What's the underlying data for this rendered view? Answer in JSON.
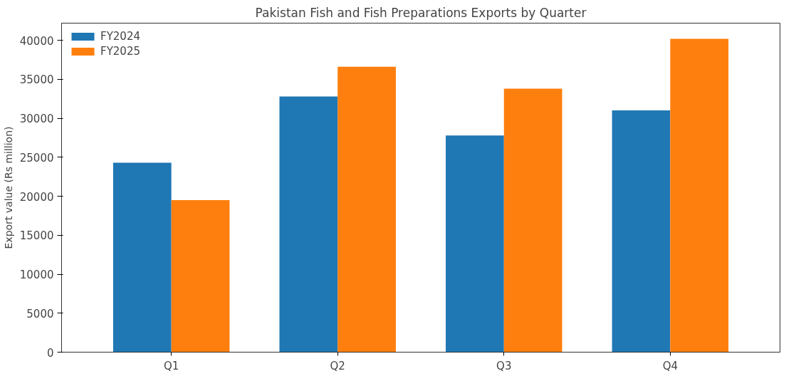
{
  "chart_data": {
    "type": "bar",
    "title": "Pakistan Fish and Fish Preparations Exports by Quarter",
    "ylabel": "Export value (Rs million)",
    "categories": [
      "Q1",
      "Q2",
      "Q3",
      "Q4"
    ],
    "series": [
      {
        "name": "FY2024",
        "color": "#1f77b4",
        "values": [
          24300,
          32800,
          27800,
          31000
        ]
      },
      {
        "name": "FY2025",
        "color": "#ff7f0e",
        "values": [
          19500,
          36600,
          33800,
          40200
        ]
      }
    ],
    "ylim": [
      0,
      42200
    ],
    "yticks": [
      0,
      5000,
      10000,
      15000,
      20000,
      25000,
      30000,
      35000,
      40000
    ],
    "grid": false,
    "legend": "top left"
  }
}
